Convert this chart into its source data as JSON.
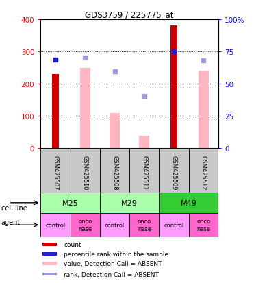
{
  "title": "GDS3759 / 225775_at",
  "samples": [
    "GSM425507",
    "GSM425510",
    "GSM425508",
    "GSM425511",
    "GSM425509",
    "GSM425512"
  ],
  "red_bars": [
    230,
    0,
    0,
    0,
    380,
    0
  ],
  "pink_bars": [
    0,
    250,
    110,
    40,
    0,
    240
  ],
  "blue_squares_left": [
    275,
    null,
    null,
    null,
    300,
    null
  ],
  "light_blue_squares_left": [
    null,
    280,
    238,
    163,
    null,
    273
  ],
  "ylim_left": [
    0,
    400
  ],
  "ylim_right": [
    0,
    100
  ],
  "yticks_left": [
    0,
    100,
    200,
    300,
    400
  ],
  "yticks_right": [
    0,
    25,
    50,
    75,
    100
  ],
  "ytick_labels_left": [
    "0",
    "100",
    "200",
    "300",
    "400"
  ],
  "ytick_labels_right": [
    "0",
    "25",
    "50",
    "75",
    "100%"
  ],
  "cell_line_data": [
    [
      "M25",
      0,
      2,
      "#AAFFAA"
    ],
    [
      "M29",
      2,
      4,
      "#AAFFAA"
    ],
    [
      "M49",
      4,
      6,
      "#33CC33"
    ]
  ],
  "agents": [
    "control",
    "onconase",
    "control",
    "onconase",
    "control",
    "onconase"
  ],
  "agent_colors": [
    "#FF99FF",
    "#FF66CC",
    "#FF99FF",
    "#FF66CC",
    "#FF99FF",
    "#FF66CC"
  ],
  "red_color": "#CC0000",
  "pink_color": "#FFB6C1",
  "blue_color": "#2222CC",
  "light_blue_color": "#9999DD",
  "legend_items": [
    {
      "label": "count",
      "color": "#CC0000"
    },
    {
      "label": "percentile rank within the sample",
      "color": "#2222CC"
    },
    {
      "label": "value, Detection Call = ABSENT",
      "color": "#FFB6C1"
    },
    {
      "label": "rank, Detection Call = ABSENT",
      "color": "#9999DD"
    }
  ]
}
